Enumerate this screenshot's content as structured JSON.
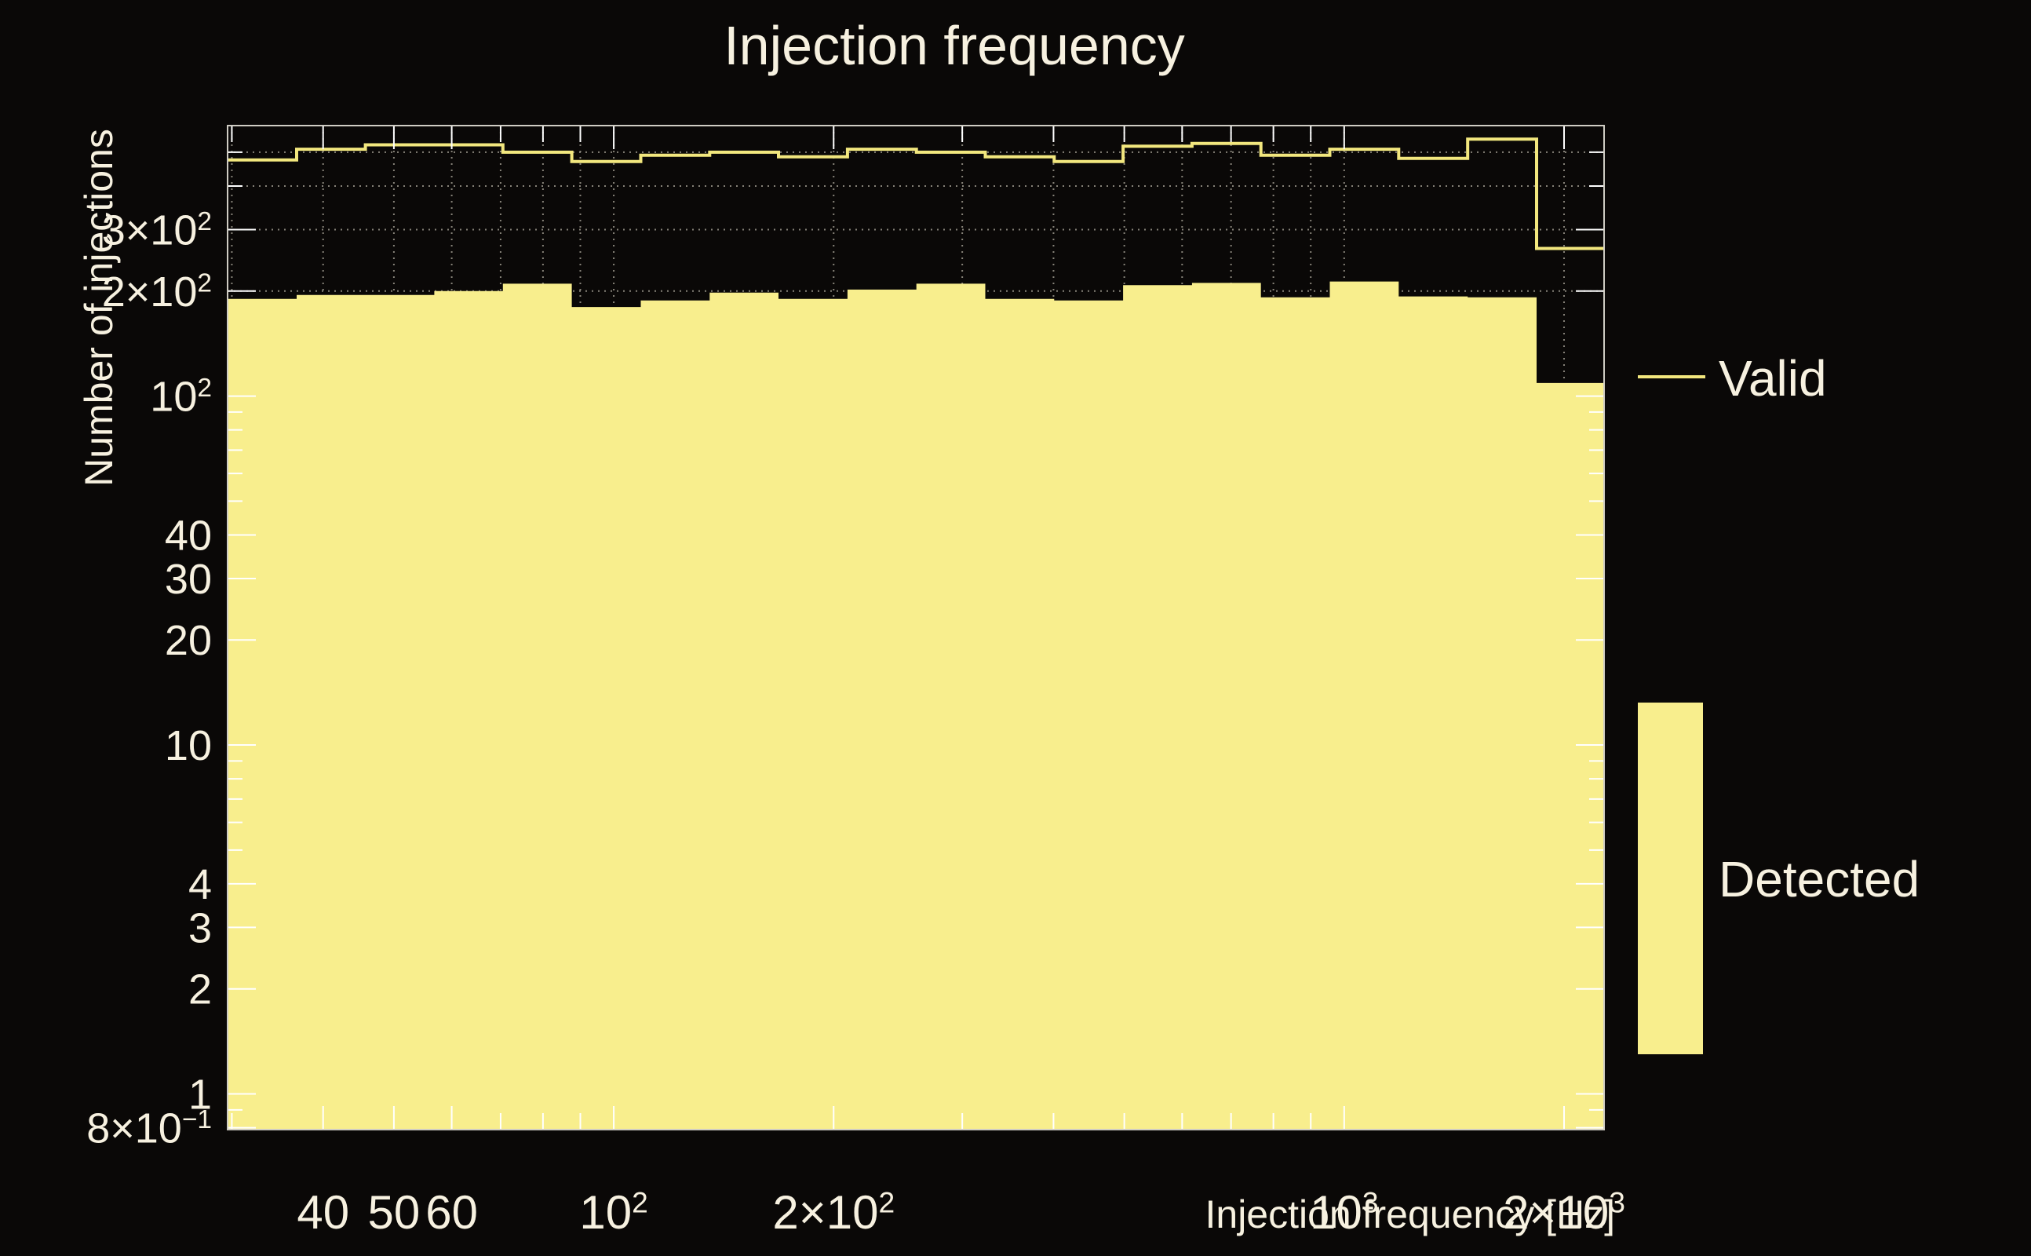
{
  "title": "Injection frequency",
  "colors": {
    "background": "#0a0807",
    "fill": "#f8ee8d",
    "line": "#f2e77e",
    "text": "#f7f1e0",
    "frame": "#cfccc3",
    "grid": "#8d897f",
    "tick": "#ffffff"
  },
  "legend": {
    "valid_label": "Valid",
    "detected_label": "Detected"
  },
  "chart_data": {
    "type": "step-histogram",
    "title": "Injection frequency",
    "xlabel": "Injection frequency [Hz]",
    "ylabel": "Number of injections",
    "xscale": "log",
    "yscale": "log",
    "xlim": [
      29.6,
      2269
    ],
    "ylim": [
      0.79,
      596
    ],
    "grid": true,
    "legend_position": "right",
    "bin_edges_hz": [
      29.6,
      36.8,
      45.7,
      56.8,
      70.5,
      87.6,
      108.9,
      135.3,
      168.1,
      208.9,
      259.6,
      322.6,
      400.9,
      498.1,
      619.0,
      769.2,
      955.8,
      1187.7,
      1475.9,
      1834.0,
      2269
    ],
    "series": [
      {
        "name": "Valid",
        "style": "step-line",
        "values": [
          475,
          510,
          525,
          525,
          500,
          470,
          490,
          500,
          485,
          510,
          500,
          485,
          470,
          520,
          530,
          490,
          510,
          480,
          545,
          265
        ]
      },
      {
        "name": "Detected",
        "style": "step-fill",
        "values": [
          190,
          195,
          195,
          200,
          210,
          180,
          188,
          198,
          190,
          202,
          210,
          190,
          188,
          208,
          211,
          192,
          213,
          193,
          192,
          109
        ]
      }
    ],
    "x_ticks": [
      {
        "v": 30
      },
      {
        "v": 40,
        "label": "40"
      },
      {
        "v": 50,
        "label": "50"
      },
      {
        "v": 60,
        "label": "60"
      },
      {
        "v": 70
      },
      {
        "v": 80
      },
      {
        "v": 90
      },
      {
        "v": 100,
        "label": "10^2"
      },
      {
        "v": 200,
        "label": "2×10^2"
      },
      {
        "v": 300
      },
      {
        "v": 400
      },
      {
        "v": 500
      },
      {
        "v": 600
      },
      {
        "v": 700
      },
      {
        "v": 800
      },
      {
        "v": 900
      },
      {
        "v": 1000,
        "label": "10^3"
      },
      {
        "v": 2000,
        "label": "2×10^3"
      }
    ],
    "y_ticks": [
      {
        "v": 0.8,
        "label": "8×10^−1"
      },
      {
        "v": 0.9
      },
      {
        "v": 1,
        "label": "1"
      },
      {
        "v": 2,
        "label": "2"
      },
      {
        "v": 3,
        "label": "3"
      },
      {
        "v": 4,
        "label": "4"
      },
      {
        "v": 5
      },
      {
        "v": 6
      },
      {
        "v": 7
      },
      {
        "v": 8
      },
      {
        "v": 9
      },
      {
        "v": 10,
        "label": "10"
      },
      {
        "v": 20,
        "label": "20"
      },
      {
        "v": 30,
        "label": "30"
      },
      {
        "v": 40,
        "label": "40"
      },
      {
        "v": 50
      },
      {
        "v": 60
      },
      {
        "v": 70
      },
      {
        "v": 80
      },
      {
        "v": 90
      },
      {
        "v": 100,
        "label": "10^2"
      },
      {
        "v": 200,
        "label": "2×10^2"
      },
      {
        "v": 300,
        "label": "3×10^2"
      },
      {
        "v": 400
      },
      {
        "v": 500
      }
    ]
  }
}
